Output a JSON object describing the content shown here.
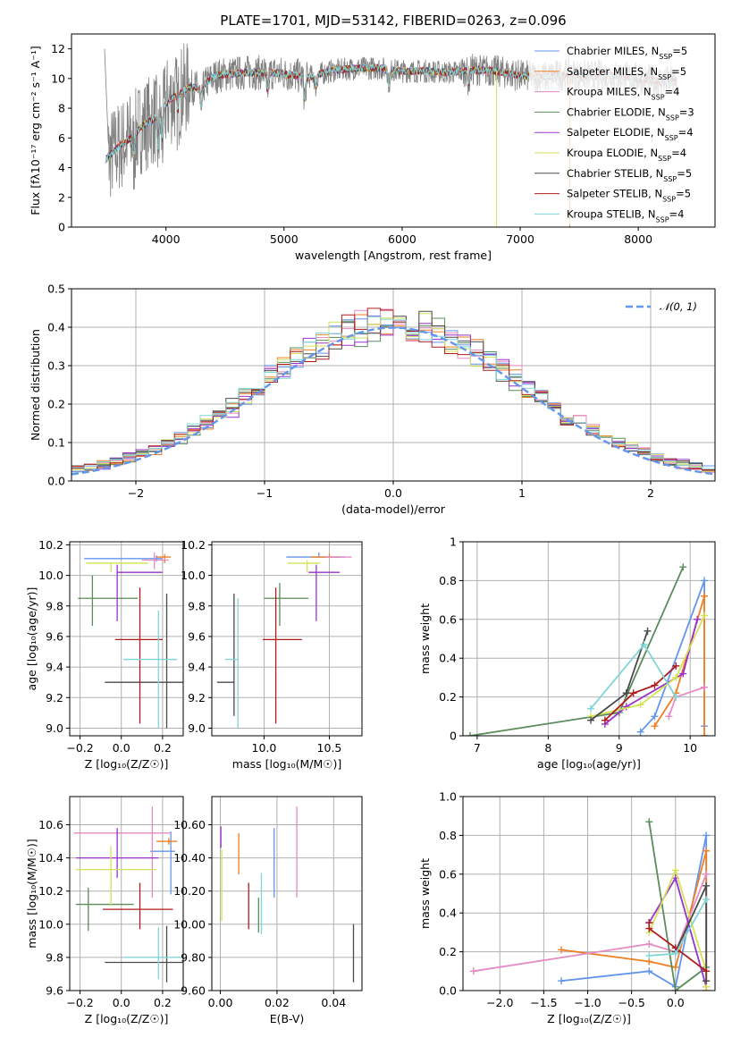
{
  "title": "PLATE=1701, MJD=53142, FIBERID=0263, z=0.096",
  "models": [
    {
      "name": "Chabrier MILES, N",
      "sub": "SSP",
      "suffix": "=5",
      "color": "#6495ed"
    },
    {
      "name": "Salpeter MILES, N",
      "sub": "SSP",
      "suffix": "=5",
      "color": "#f07f23"
    },
    {
      "name": "Kroupa MILES, N",
      "sub": "SSP",
      "suffix": "=4",
      "color": "#e68ac3"
    },
    {
      "name": "Chabrier ELODIE, N",
      "sub": "SSP",
      "suffix": "=3",
      "color": "#5b8c5a"
    },
    {
      "name": "Salpeter ELODIE, N",
      "sub": "SSP",
      "suffix": "=4",
      "color": "#9a32cd"
    },
    {
      "name": "Kroupa ELODIE, N",
      "sub": "SSP",
      "suffix": "=4",
      "color": "#d4e157"
    },
    {
      "name": "Chabrier STELIB, N",
      "sub": "SSP",
      "suffix": "=5",
      "color": "#4a4a4a"
    },
    {
      "name": "Salpeter STELIB, N",
      "sub": "SSP",
      "suffix": "=5",
      "color": "#b01c1c"
    },
    {
      "name": "Kroupa STELIB, N",
      "sub": "SSP",
      "suffix": "=4",
      "color": "#7fd6d6"
    }
  ],
  "chart_data": [
    {
      "id": "spectrum",
      "type": "line",
      "xlabel": "wavelength [Angstrom, rest frame]",
      "ylabel": "Flux [fλ10⁻¹⁷ erg cm⁻² s⁻¹ A⁻¹]",
      "xlim": [
        3200,
        8650
      ],
      "ylim": [
        0,
        13
      ],
      "xticks": [
        4000,
        5000,
        6000,
        7000,
        8000
      ],
      "yticks": [
        0,
        2,
        4,
        6,
        8,
        10,
        12
      ],
      "continuum": [
        [
          3480,
          4.5
        ],
        [
          3600,
          5.4
        ],
        [
          3700,
          6.0
        ],
        [
          3800,
          6.8
        ],
        [
          3900,
          7.3
        ],
        [
          4000,
          8.3
        ],
        [
          4100,
          9.0
        ],
        [
          4200,
          9.4
        ],
        [
          4300,
          9.4
        ],
        [
          4400,
          10.1
        ],
        [
          4500,
          10.3
        ],
        [
          4700,
          10.4
        ],
        [
          4900,
          10.4
        ],
        [
          5000,
          10.3
        ],
        [
          5200,
          10.1
        ],
        [
          5400,
          10.5
        ],
        [
          5600,
          10.7
        ],
        [
          5800,
          10.7
        ],
        [
          6000,
          10.5
        ],
        [
          6200,
          10.5
        ],
        [
          6400,
          10.4
        ],
        [
          6600,
          10.6
        ],
        [
          6800,
          10.5
        ],
        [
          7000,
          10.2
        ],
        [
          7200,
          10.1
        ],
        [
          7400,
          10.3
        ],
        [
          7600,
          10.2
        ],
        [
          7800,
          10.2
        ],
        [
          8000,
          10.0
        ],
        [
          8200,
          9.8
        ],
        [
          8350,
          9.8
        ]
      ],
      "grid": false,
      "legend": "right"
    },
    {
      "id": "residuals",
      "type": "histogram",
      "xlabel": "(data-model)/error",
      "ylabel": "Normed distribution",
      "xlim": [
        -2.5,
        2.5
      ],
      "ylim": [
        0,
        0.5
      ],
      "xticks": [
        -2,
        -1,
        0,
        1,
        2
      ],
      "yticks": [
        0.0,
        0.1,
        0.2,
        0.3,
        0.4,
        0.5
      ],
      "reference": {
        "name": "𝒩(0, 1)",
        "mu": 0,
        "sigma": 1
      },
      "grid": true,
      "legend": "top-right"
    },
    {
      "id": "age_vs_Z",
      "type": "errorbar",
      "xlabel": "Z [log₁₀(Z/Z☉)]",
      "ylabel": "age  [log₁₀(age/yr)]",
      "xlim": [
        -0.25,
        0.3
      ],
      "ylim": [
        8.95,
        10.22
      ],
      "xticks": [
        -0.2,
        0.0,
        0.2
      ],
      "yticks": [
        9.0,
        9.2,
        9.4,
        9.6,
        9.8,
        10.0,
        10.2
      ],
      "points": [
        {
          "x": 0.17,
          "xe": [
            0.35,
            0.03
          ],
          "y": 10.11,
          "ye": [
            0.02,
            0.02
          ]
        },
        {
          "x": 0.21,
          "xe": [
            0.04,
            0.03
          ],
          "y": 10.12,
          "ye": [
            0.04,
            0.02
          ]
        },
        {
          "x": 0.16,
          "xe": [
            0.06,
            0.07
          ],
          "y": 10.1,
          "ye": [
            0.06,
            0.05
          ]
        },
        {
          "x": -0.14,
          "xe": [
            0.07,
            0.22
          ],
          "y": 9.85,
          "ye": [
            0.18,
            0.15
          ]
        },
        {
          "x": -0.02,
          "xe": [
            0.0,
            0.22
          ],
          "y": 10.02,
          "ye": [
            0.32,
            0.05
          ]
        },
        {
          "x": -0.05,
          "xe": [
            0.12,
            0.18
          ],
          "y": 10.08,
          "ye": [
            0.06,
            0.0
          ]
        },
        {
          "x": 0.22,
          "xe": [
            0.3,
            0.08
          ],
          "y": 9.3,
          "ye": [
            0.3,
            0.58
          ]
        },
        {
          "x": 0.09,
          "xe": [
            0.12,
            0.11
          ],
          "y": 9.58,
          "ye": [
            0.55,
            0.34
          ]
        },
        {
          "x": 0.18,
          "xe": [
            0.17,
            0.09
          ],
          "y": 9.45,
          "ye": [
            0.45,
            0.32
          ]
        }
      ],
      "grid": true
    },
    {
      "id": "age_vs_mass",
      "type": "errorbar",
      "xlabel": "mass [log₁₀(M/M☉)]",
      "ylabel": "",
      "xlim": [
        9.6,
        10.75
      ],
      "ylim": [
        8.95,
        10.22
      ],
      "xticks": [
        10.0,
        10.5
      ],
      "yticks": [
        9.0,
        9.2,
        9.4,
        9.6,
        9.8,
        10.0,
        10.2
      ],
      "points": [
        {
          "x": 10.42,
          "xe": [
            0.25,
            0.2
          ],
          "y": 10.12,
          "ye": [
            0.0,
            0.03
          ]
        },
        {
          "x": 10.5,
          "xe": [
            0.14,
            0.08
          ],
          "y": 10.12,
          "ye": [
            0.0,
            0.02
          ]
        },
        {
          "x": 10.55,
          "xe": [
            0.08,
            0.12
          ],
          "y": 10.12,
          "ye": [
            0.0,
            0.0
          ]
        },
        {
          "x": 10.12,
          "xe": [
            0.12,
            0.22
          ],
          "y": 9.85,
          "ye": [
            0.18,
            0.1
          ]
        },
        {
          "x": 10.4,
          "xe": [
            0.06,
            0.18
          ],
          "y": 10.02,
          "ye": [
            0.32,
            0.05
          ]
        },
        {
          "x": 10.33,
          "xe": [
            0.15,
            0.1
          ],
          "y": 10.08,
          "ye": [
            0.06,
            0.02
          ]
        },
        {
          "x": 9.77,
          "xe": [
            0.13,
            0.0
          ],
          "y": 9.3,
          "ye": [
            0.22,
            0.58
          ]
        },
        {
          "x": 10.09,
          "xe": [
            0.1,
            0.2
          ],
          "y": 9.58,
          "ye": [
            0.55,
            0.34
          ]
        },
        {
          "x": 9.8,
          "xe": [
            0.1,
            0.0
          ],
          "y": 9.45,
          "ye": [
            0.45,
            0.4
          ]
        }
      ],
      "grid": true
    },
    {
      "id": "mass_weight_vs_age",
      "type": "line",
      "xlabel": "age  [log₁₀(age/yr)]",
      "ylabel": "mass weight",
      "xlim": [
        6.8,
        10.35
      ],
      "ylim": [
        0,
        1
      ],
      "xticks": [
        7,
        8,
        9,
        10
      ],
      "yticks": [
        0.0,
        0.2,
        0.4,
        0.6,
        0.8,
        1.0
      ],
      "series": [
        [
          [
            9.3,
            0.02
          ],
          [
            9.5,
            0.1
          ],
          [
            10.2,
            0.8
          ],
          [
            10.2,
            0.05
          ]
        ],
        [
          [
            9.5,
            0.05
          ],
          [
            9.8,
            0.22
          ],
          [
            10.2,
            0.72
          ],
          [
            10.2,
            0.0
          ]
        ],
        [
          [
            9.7,
            0.1
          ],
          [
            9.8,
            0.2
          ],
          [
            10.2,
            0.25
          ]
        ],
        [
          [
            6.9,
            0.0
          ],
          [
            9.0,
            0.12
          ],
          [
            9.9,
            0.87
          ]
        ],
        [
          [
            8.8,
            0.06
          ],
          [
            9.1,
            0.15
          ],
          [
            9.9,
            0.32
          ],
          [
            10.1,
            0.6
          ]
        ],
        [
          [
            8.6,
            0.1
          ],
          [
            9.3,
            0.16
          ],
          [
            9.8,
            0.3
          ],
          [
            10.2,
            0.62
          ]
        ],
        [
          [
            8.6,
            0.08
          ],
          [
            9.1,
            0.22
          ],
          [
            9.4,
            0.54
          ]
        ],
        [
          [
            8.8,
            0.08
          ],
          [
            9.2,
            0.22
          ],
          [
            9.5,
            0.26
          ],
          [
            9.8,
            0.36
          ]
        ],
        [
          [
            8.6,
            0.14
          ],
          [
            9.35,
            0.47
          ],
          [
            9.8,
            0.2
          ]
        ]
      ],
      "grid": true
    },
    {
      "id": "mass_vs_Z",
      "type": "errorbar",
      "xlabel": "Z [log₁₀(Z/Z☉)]",
      "ylabel": "mass [log₁₀(M/M☉)]",
      "xlim": [
        -0.25,
        0.3
      ],
      "ylim": [
        9.6,
        10.77
      ],
      "xticks": [
        -0.2,
        0.0,
        0.2
      ],
      "yticks": [
        9.6,
        9.8,
        10.0,
        10.2,
        10.4,
        10.6
      ],
      "points": [
        {
          "x": 0.24,
          "xe": [
            0.1,
            0.02
          ],
          "y": 10.44,
          "ye": [
            0.26,
            0.12
          ]
        },
        {
          "x": 0.23,
          "xe": [
            0.06,
            0.04
          ],
          "y": 10.5,
          "ye": [
            0.02,
            0.02
          ]
        },
        {
          "x": 0.15,
          "xe": [
            0.38,
            0.09
          ],
          "y": 10.55,
          "ye": [
            0.39,
            0.16
          ]
        },
        {
          "x": -0.16,
          "xe": [
            0.06,
            0.22
          ],
          "y": 10.12,
          "ye": [
            0.16,
            0.1
          ]
        },
        {
          "x": -0.02,
          "xe": [
            0.2,
            0.2
          ],
          "y": 10.4,
          "ye": [
            0.12,
            0.18
          ]
        },
        {
          "x": -0.05,
          "xe": [
            0.17,
            0.22
          ],
          "y": 10.33,
          "ye": [
            0.22,
            0.14
          ]
        },
        {
          "x": 0.22,
          "xe": [
            0.3,
            0.08
          ],
          "y": 9.77,
          "ye": [
            0.12,
            0.22
          ]
        },
        {
          "x": 0.09,
          "xe": [
            0.18,
            0.16
          ],
          "y": 10.09,
          "ye": [
            0.12,
            0.16
          ]
        },
        {
          "x": 0.18,
          "xe": [
            0.17,
            0.12
          ],
          "y": 9.8,
          "ye": [
            0.13,
            0.18
          ]
        }
      ],
      "grid": true
    },
    {
      "id": "mass_vs_EBV",
      "type": "errorbar",
      "xlabel": "E(B-V)",
      "ylabel": "",
      "xlim": [
        -0.003,
        0.05
      ],
      "ylim": [
        9.6,
        10.77
      ],
      "xticks": [
        0.0,
        0.02,
        0.04
      ],
      "yticks": [
        9.6,
        9.8,
        10.0,
        10.2,
        10.4,
        10.6
      ],
      "points": [
        {
          "x": 0.019,
          "y": 10.42,
          "ye": [
            0.26,
            0.16
          ]
        },
        {
          "x": 0.0065,
          "y": 10.43,
          "ye": [
            0.13,
            0.12
          ]
        },
        {
          "x": 0.027,
          "y": 10.44,
          "ye": [
            0.28,
            0.27
          ]
        },
        {
          "x": 0.0135,
          "y": 10.12,
          "ye": [
            0.17,
            0.04
          ]
        },
        {
          "x": 0.0002,
          "y": 10.53,
          "ye": [
            0.07,
            0.06
          ]
        },
        {
          "x": 0.0005,
          "y": 10.23,
          "ye": [
            0.21,
            0.22
          ]
        },
        {
          "x": 0.047,
          "y": 9.82,
          "ye": [
            0.17,
            0.18
          ]
        },
        {
          "x": 0.01,
          "y": 10.1,
          "ye": [
            0.13,
            0.15
          ]
        },
        {
          "x": 0.0145,
          "y": 10.14,
          "ye": [
            0.2,
            0.17
          ]
        }
      ],
      "grid": true
    },
    {
      "id": "mass_weight_vs_Z",
      "type": "line",
      "xlabel": "Z [log₁₀(Z/Z☉)]",
      "ylabel": "mass weight",
      "xlim": [
        -2.42,
        0.45
      ],
      "ylim": [
        0,
        1
      ],
      "xticks": [
        -2.0,
        -1.5,
        -1.0,
        -0.5,
        0.0
      ],
      "yticks": [
        0.0,
        0.2,
        0.4,
        0.6,
        0.8,
        1.0
      ],
      "series": [
        [
          [
            -1.3,
            0.05
          ],
          [
            -0.3,
            0.1
          ],
          [
            0.0,
            0.02
          ],
          [
            0.35,
            0.8
          ],
          [
            0.35,
            0.05
          ]
        ],
        [
          [
            -1.3,
            0.21
          ],
          [
            -0.3,
            0.15
          ],
          [
            0.0,
            0.12
          ],
          [
            0.35,
            0.72
          ],
          [
            0.35,
            0.0
          ]
        ],
        [
          [
            -2.3,
            0.1
          ],
          [
            -0.3,
            0.24
          ],
          [
            0.0,
            0.2
          ],
          [
            0.35,
            0.6
          ]
        ],
        [
          [
            -0.3,
            0.87
          ],
          [
            0.0,
            0.0
          ],
          [
            0.35,
            0.12
          ]
        ],
        [
          [
            -0.3,
            0.35
          ],
          [
            0.0,
            0.58
          ],
          [
            0.35,
            0.02
          ]
        ],
        [
          [
            -0.3,
            0.3
          ],
          [
            0.0,
            0.62
          ],
          [
            0.35,
            0.1
          ],
          [
            0.35,
            0.02
          ]
        ],
        [
          [
            0.0,
            0.2
          ],
          [
            0.35,
            0.54
          ],
          [
            0.35,
            0.05
          ]
        ],
        [
          [
            -0.3,
            0.35
          ],
          [
            -0.3,
            0.32
          ],
          [
            0.0,
            0.22
          ],
          [
            0.35,
            0.1
          ]
        ],
        [
          [
            -0.3,
            0.18
          ],
          [
            0.0,
            0.19
          ],
          [
            0.35,
            0.47
          ]
        ]
      ],
      "grid": true
    }
  ]
}
